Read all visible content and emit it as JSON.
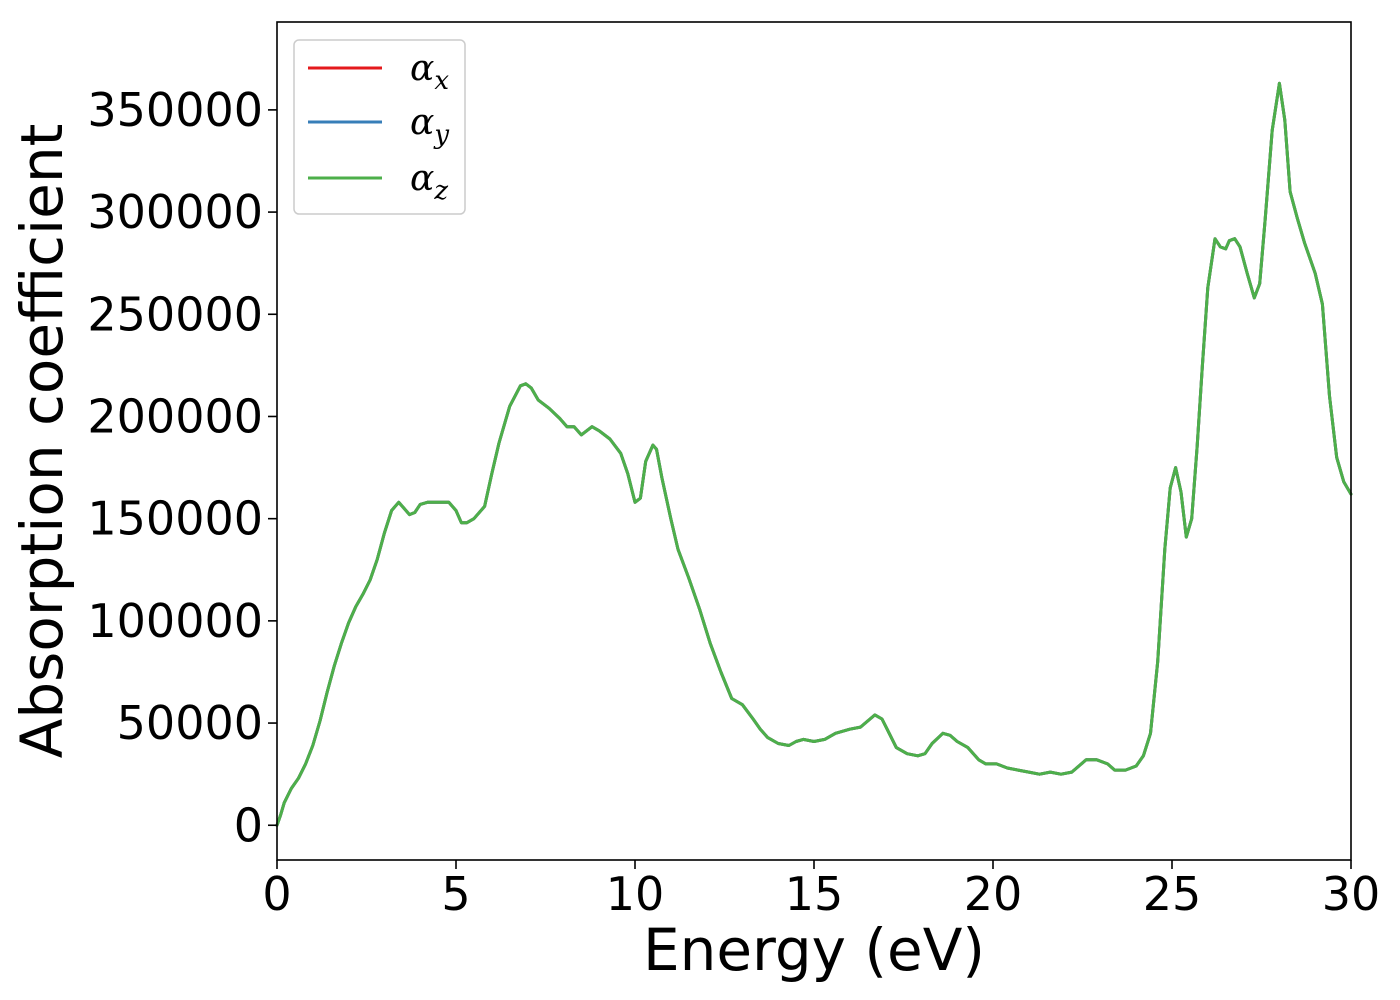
{
  "chart_data": {
    "type": "line",
    "xlabel": "Energy (eV)",
    "ylabel": "Absorption coefficient",
    "xlim": [
      0,
      30
    ],
    "ylim": [
      -17000,
      393000
    ],
    "xticks": [
      0,
      5,
      10,
      15,
      20,
      25,
      30
    ],
    "xtick_labels": [
      "0",
      "5",
      "10",
      "15",
      "20",
      "25",
      "30"
    ],
    "yticks": [
      0,
      50000,
      100000,
      150000,
      200000,
      250000,
      300000,
      350000
    ],
    "ytick_labels": [
      "0",
      "50000",
      "100000",
      "150000",
      "200000",
      "250000",
      "300000",
      "350000"
    ],
    "grid": false,
    "legend_position": "top-left",
    "x": [
      0,
      0.1,
      0.2,
      0.4,
      0.6,
      0.8,
      1.0,
      1.2,
      1.4,
      1.6,
      1.8,
      2.0,
      2.2,
      2.4,
      2.6,
      2.8,
      3.0,
      3.2,
      3.4,
      3.55,
      3.7,
      3.85,
      4.0,
      4.2,
      4.5,
      4.8,
      5.0,
      5.15,
      5.3,
      5.5,
      5.8,
      6.0,
      6.2,
      6.5,
      6.8,
      6.95,
      7.1,
      7.3,
      7.6,
      7.9,
      8.1,
      8.3,
      8.5,
      8.8,
      9.0,
      9.3,
      9.6,
      9.8,
      10.0,
      10.15,
      10.3,
      10.5,
      10.6,
      10.75,
      11.0,
      11.2,
      11.5,
      11.8,
      12.1,
      12.4,
      12.7,
      13.0,
      13.3,
      13.5,
      13.7,
      14.0,
      14.3,
      14.5,
      14.7,
      15.0,
      15.3,
      15.6,
      16.0,
      16.3,
      16.5,
      16.7,
      16.9,
      17.1,
      17.3,
      17.6,
      17.9,
      18.1,
      18.3,
      18.6,
      18.8,
      19.0,
      19.3,
      19.6,
      19.8,
      20.1,
      20.4,
      20.7,
      21.0,
      21.3,
      21.6,
      21.9,
      22.2,
      22.4,
      22.6,
      22.9,
      23.2,
      23.4,
      23.7,
      24.0,
      24.2,
      24.4,
      24.6,
      24.8,
      24.95,
      25.1,
      25.25,
      25.4,
      25.55,
      25.7,
      25.85,
      26.0,
      26.2,
      26.35,
      26.5,
      26.6,
      26.75,
      26.9,
      27.1,
      27.3,
      27.45,
      27.6,
      27.8,
      28.0,
      28.15,
      28.3,
      28.5,
      28.7,
      29.0,
      29.2,
      29.4,
      29.6,
      29.8,
      30.0
    ],
    "series": [
      {
        "name": "α_x",
        "label_main": "α",
        "label_sub": "x",
        "color": "#e41a1c",
        "y": [
          0,
          5000,
          11000,
          18000,
          23000,
          30000,
          39000,
          51000,
          65000,
          78000,
          89000,
          99000,
          107000,
          113000,
          120000,
          130000,
          143000,
          154000,
          158000,
          155000,
          152000,
          153000,
          157000,
          158000,
          158000,
          158000,
          154000,
          148000,
          148000,
          150000,
          156000,
          172000,
          187000,
          205000,
          215000,
          216000,
          214000,
          208000,
          204000,
          199000,
          195000,
          195000,
          191000,
          195000,
          193000,
          189000,
          182000,
          172000,
          158000,
          160000,
          178000,
          186000,
          184000,
          170000,
          150000,
          135000,
          121000,
          106000,
          89000,
          75000,
          62000,
          59000,
          52000,
          47000,
          43000,
          40000,
          39000,
          41000,
          42000,
          41000,
          42000,
          45000,
          47000,
          48000,
          51000,
          54000,
          52000,
          45000,
          38000,
          35000,
          34000,
          35000,
          40000,
          45000,
          44000,
          41000,
          38000,
          32000,
          30000,
          30000,
          28000,
          27000,
          26000,
          25000,
          26000,
          25000,
          26000,
          29000,
          32000,
          32000,
          30000,
          27000,
          27000,
          29000,
          34000,
          45000,
          80000,
          135000,
          165000,
          175000,
          163000,
          141000,
          150000,
          185000,
          225000,
          263000,
          287000,
          283000,
          282000,
          286000,
          287000,
          283000,
          270000,
          258000,
          265000,
          296000,
          340000,
          363000,
          345000,
          310000,
          297000,
          285000,
          270000,
          255000,
          210000,
          180000,
          168000,
          162000
        ]
      },
      {
        "name": "α_y",
        "label_main": "α",
        "label_sub": "y",
        "color": "#377eb8",
        "y": [
          0,
          5000,
          11000,
          18000,
          23000,
          30000,
          39000,
          51000,
          65000,
          78000,
          89000,
          99000,
          107000,
          113000,
          120000,
          130000,
          143000,
          154000,
          158000,
          155000,
          152000,
          153000,
          157000,
          158000,
          158000,
          158000,
          154000,
          148000,
          148000,
          150000,
          156000,
          172000,
          187000,
          205000,
          215000,
          216000,
          214000,
          208000,
          204000,
          199000,
          195000,
          195000,
          191000,
          195000,
          193000,
          189000,
          182000,
          172000,
          158000,
          160000,
          178000,
          186000,
          184000,
          170000,
          150000,
          135000,
          121000,
          106000,
          89000,
          75000,
          62000,
          59000,
          52000,
          47000,
          43000,
          40000,
          39000,
          41000,
          42000,
          41000,
          42000,
          45000,
          47000,
          48000,
          51000,
          54000,
          52000,
          45000,
          38000,
          35000,
          34000,
          35000,
          40000,
          45000,
          44000,
          41000,
          38000,
          32000,
          30000,
          30000,
          28000,
          27000,
          26000,
          25000,
          26000,
          25000,
          26000,
          29000,
          32000,
          32000,
          30000,
          27000,
          27000,
          29000,
          34000,
          45000,
          80000,
          135000,
          165000,
          175000,
          163000,
          141000,
          150000,
          185000,
          225000,
          263000,
          287000,
          283000,
          282000,
          286000,
          287000,
          283000,
          270000,
          258000,
          265000,
          296000,
          340000,
          363000,
          345000,
          310000,
          297000,
          285000,
          270000,
          255000,
          210000,
          180000,
          168000,
          162000
        ]
      },
      {
        "name": "α_z",
        "label_main": "α",
        "label_sub": "z",
        "color": "#4daf4a",
        "y": [
          0,
          5000,
          11000,
          18000,
          23000,
          30000,
          39000,
          51000,
          65000,
          78000,
          89000,
          99000,
          107000,
          113000,
          120000,
          130000,
          143000,
          154000,
          158000,
          155000,
          152000,
          153000,
          157000,
          158000,
          158000,
          158000,
          154000,
          148000,
          148000,
          150000,
          156000,
          172000,
          187000,
          205000,
          215000,
          216000,
          214000,
          208000,
          204000,
          199000,
          195000,
          195000,
          191000,
          195000,
          193000,
          189000,
          182000,
          172000,
          158000,
          160000,
          178000,
          186000,
          184000,
          170000,
          150000,
          135000,
          121000,
          106000,
          89000,
          75000,
          62000,
          59000,
          52000,
          47000,
          43000,
          40000,
          39000,
          41000,
          42000,
          41000,
          42000,
          45000,
          47000,
          48000,
          51000,
          54000,
          52000,
          45000,
          38000,
          35000,
          34000,
          35000,
          40000,
          45000,
          44000,
          41000,
          38000,
          32000,
          30000,
          30000,
          28000,
          27000,
          26000,
          25000,
          26000,
          25000,
          26000,
          29000,
          32000,
          32000,
          30000,
          27000,
          27000,
          29000,
          34000,
          45000,
          80000,
          135000,
          165000,
          175000,
          163000,
          141000,
          150000,
          185000,
          225000,
          263000,
          287000,
          283000,
          282000,
          286000,
          287000,
          283000,
          270000,
          258000,
          265000,
          296000,
          340000,
          363000,
          345000,
          310000,
          297000,
          285000,
          270000,
          255000,
          210000,
          180000,
          168000,
          162000
        ]
      }
    ]
  }
}
